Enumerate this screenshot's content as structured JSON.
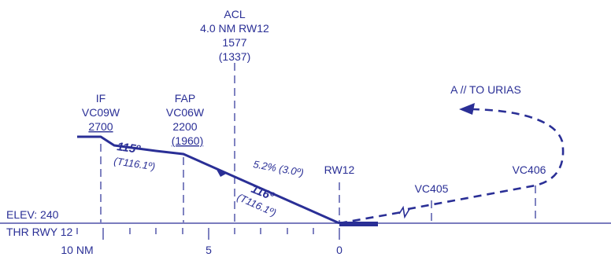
{
  "colors": {
    "ink": "#2a2f96"
  },
  "acl": {
    "name": "ACL",
    "dist": "4.0 NM RW12",
    "alt": "1577",
    "height": "(1337)"
  },
  "fixes": {
    "if": {
      "role": "IF",
      "name": "VC09W",
      "alt": "2700"
    },
    "fap": {
      "role": "FAP",
      "name": "VC06W",
      "alt": "2200",
      "height": "(1960)"
    },
    "rw12": {
      "name": "RW12"
    },
    "vc405": {
      "name": "VC405"
    },
    "vc406": {
      "name": "VC406"
    }
  },
  "missed_approach": {
    "label": "A // TO URIAS"
  },
  "segments": {
    "seg1": {
      "course": "115º",
      "true_course": "(T116.1º)"
    },
    "seg2": {
      "gradient": "5.2% (3.0º)",
      "course": "116º",
      "true_course": "(T116.1º)"
    }
  },
  "elevation": {
    "label": "ELEV: 240"
  },
  "threshold": {
    "label": "THR RWY 12"
  },
  "scale": {
    "labels": [
      "10 NM",
      "5",
      "0"
    ]
  }
}
